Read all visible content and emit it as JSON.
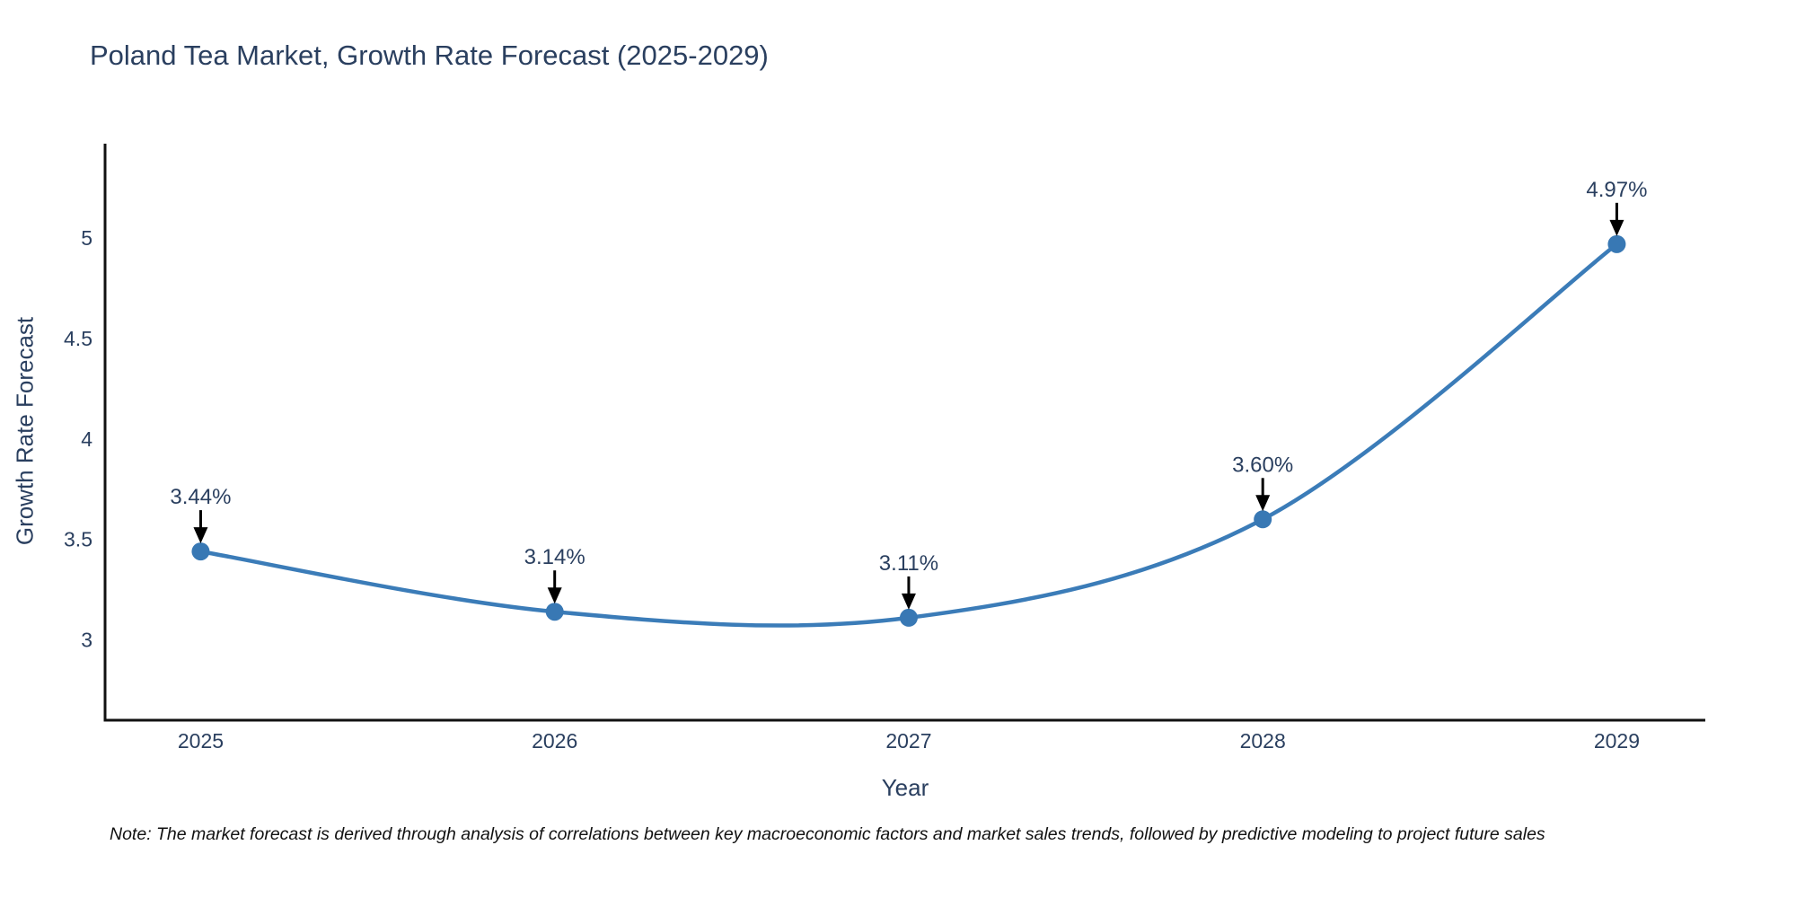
{
  "chart_data": {
    "type": "line",
    "title": "Poland Tea Market, Growth Rate Forecast (2025-2029)",
    "xlabel": "Year",
    "ylabel": "Growth Rate Forecast",
    "x": [
      2025,
      2026,
      2027,
      2028,
      2029
    ],
    "series": [
      {
        "name": "Growth Rate Forecast",
        "values": [
          3.44,
          3.14,
          3.11,
          3.6,
          4.97
        ]
      }
    ],
    "point_labels": [
      "3.44%",
      "3.14%",
      "3.11%",
      "3.60%",
      "4.97%"
    ],
    "yticks": [
      3,
      3.5,
      4,
      4.5,
      5
    ],
    "ytick_labels": [
      "3",
      "3.5",
      "4",
      "4.5",
      "5"
    ],
    "xtick_labels": [
      "2025",
      "2026",
      "2027",
      "2028",
      "2029"
    ],
    "ylim": [
      2.6,
      5.47
    ],
    "xlim": [
      2024.73,
      2029.25
    ],
    "line_shape": "spline",
    "grid": false,
    "legend": "none",
    "colors": {
      "line": "#3b7cb8",
      "marker": "#3878b4",
      "text": "#2a3f5f",
      "axis": "#111111",
      "annotation_arrow": "#000000",
      "background": "#ffffff"
    }
  },
  "note": "Note: The market forecast is derived through analysis of correlations between key macroeconomic factors and market sales trends, followed by predictive modeling to project future sales"
}
